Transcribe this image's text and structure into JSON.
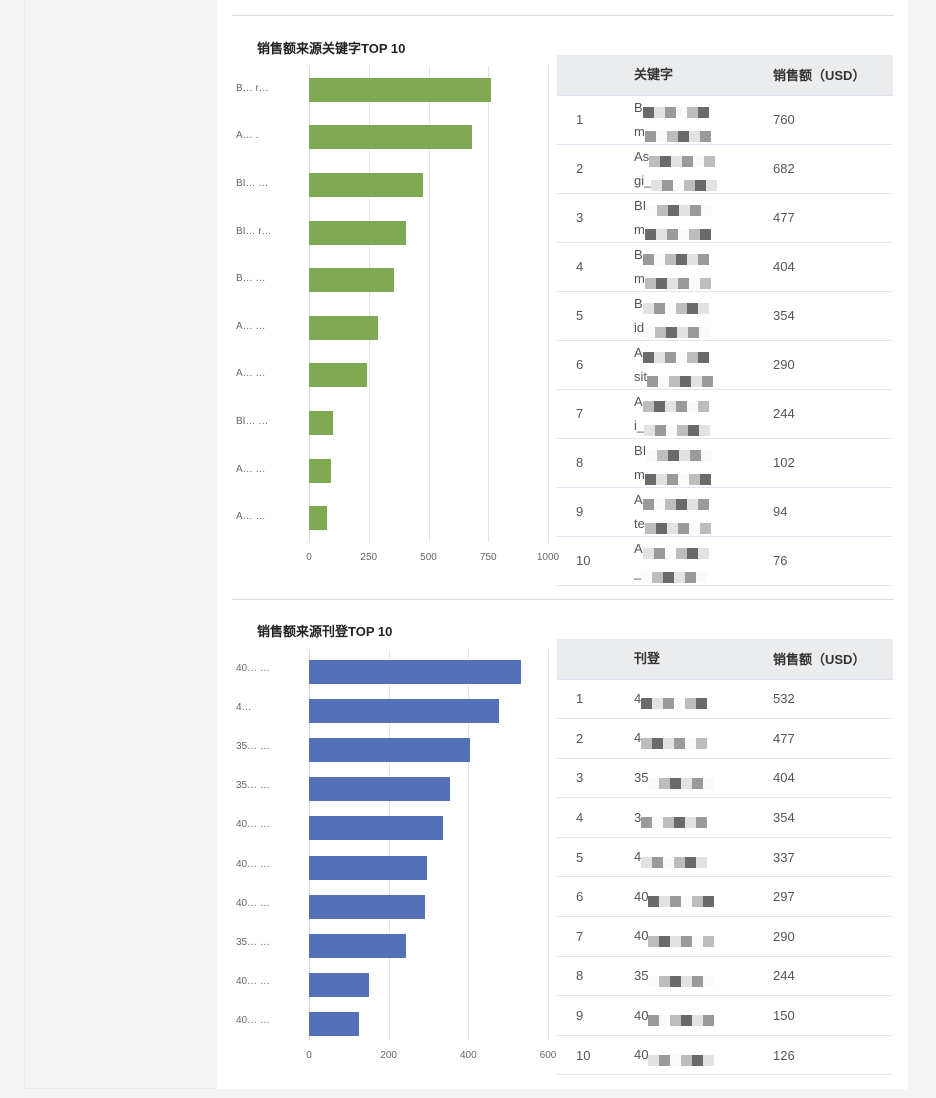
{
  "colors": {
    "keyword_bar": "#7faa53",
    "listing_bar": "#5470b8",
    "table_header_bg": "#ebecee",
    "page_bg": "#f4f4f4"
  },
  "keyword_section": {
    "title": "销售额来源关键字TOP 10",
    "table": {
      "headers": [
        "",
        "关键字",
        "销售额（USD）"
      ],
      "rows": [
        {
          "rank": "1",
          "name_line1": "B",
          "name_line2": "m",
          "value": "760"
        },
        {
          "rank": "2",
          "name_line1": "As",
          "name_line2": "gi_",
          "value": "682"
        },
        {
          "rank": "3",
          "name_line1": "BI",
          "name_line2": "m",
          "value": "477"
        },
        {
          "rank": "4",
          "name_line1": "B",
          "name_line2": "m",
          "value": "404"
        },
        {
          "rank": "5",
          "name_line1": "B",
          "name_line2": "id",
          "value": "354"
        },
        {
          "rank": "6",
          "name_line1": "A",
          "name_line2": "sit",
          "value": "290"
        },
        {
          "rank": "7",
          "name_line1": "A",
          "name_line2": "i_",
          "value": "244"
        },
        {
          "rank": "8",
          "name_line1": "BI",
          "name_line2": "m",
          "value": "102"
        },
        {
          "rank": "9",
          "name_line1": "A",
          "name_line2": "te",
          "value": "94"
        },
        {
          "rank": "10",
          "name_line1": "A",
          "name_line2": "_",
          "value": "76"
        }
      ]
    }
  },
  "listing_section": {
    "title": "销售额来源刊登TOP 10",
    "table": {
      "headers": [
        "",
        "刊登",
        "销售额（USD）"
      ],
      "rows": [
        {
          "rank": "1",
          "name": "4",
          "value": "532"
        },
        {
          "rank": "2",
          "name": "4",
          "value": "477"
        },
        {
          "rank": "3",
          "name": "35",
          "value": "404"
        },
        {
          "rank": "4",
          "name": "3",
          "value": "354"
        },
        {
          "rank": "5",
          "name": "4",
          "value": "337"
        },
        {
          "rank": "6",
          "name": "40",
          "value": "297"
        },
        {
          "rank": "7",
          "name": "40",
          "value": "290"
        },
        {
          "rank": "8",
          "name": "35",
          "value": "244"
        },
        {
          "rank": "9",
          "name": "40",
          "value": "150"
        },
        {
          "rank": "10",
          "name": "40",
          "value": "126"
        }
      ]
    }
  },
  "chart_data": [
    {
      "type": "bar",
      "orientation": "horizontal",
      "title": "销售额来源关键字TOP 10",
      "categories": [
        "B… r…",
        "A… .",
        "BI… …",
        "BI… r…",
        "B… …",
        "A… …",
        "A… …",
        "BI… …",
        "A… …",
        "A… …"
      ],
      "values": [
        760,
        682,
        477,
        404,
        354,
        290,
        244,
        102,
        94,
        76
      ],
      "xlabel": "",
      "ylabel": "",
      "xlim": [
        0,
        1000
      ],
      "xticks": [
        "0",
        "250",
        "500",
        "750",
        "1000"
      ],
      "grid": true,
      "color": "#7faa53"
    },
    {
      "type": "bar",
      "orientation": "horizontal",
      "title": "销售额来源刊登TOP 10",
      "categories": [
        "40… …",
        "4…",
        "35… …",
        "35… …",
        "40… …",
        "40… …",
        "40… …",
        "35… …",
        "40… …",
        "40… …"
      ],
      "values": [
        532,
        477,
        404,
        354,
        337,
        297,
        290,
        244,
        150,
        126
      ],
      "xlabel": "",
      "ylabel": "",
      "xlim": [
        0,
        600
      ],
      "xticks": [
        "0",
        "200",
        "400",
        "600"
      ],
      "grid": true,
      "color": "#5470b8"
    }
  ]
}
